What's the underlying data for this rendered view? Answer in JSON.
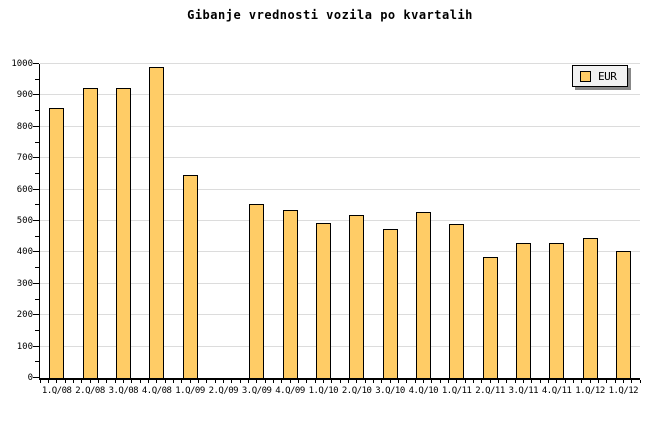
{
  "chart_data": {
    "type": "bar",
    "title": "Gibanje vrednosti vozila po kvartalih",
    "categories": [
      "1.Q/08",
      "2.Q/08",
      "3.Q/08",
      "4.Q/08",
      "1.Q/09",
      "2.Q/09",
      "3.Q/09",
      "4.Q/09",
      "1.Q/10",
      "2.Q/10",
      "3.Q/10",
      "4.Q/10",
      "1.Q/11",
      "2.Q/11",
      "3.Q/11",
      "4.Q/11",
      "1.Q/12",
      "1.Q/12"
    ],
    "series": [
      {
        "name": "EUR",
        "values": [
          860,
          925,
          925,
          990,
          645,
          0,
          555,
          535,
          495,
          520,
          475,
          530,
          490,
          385,
          430,
          430,
          445,
          405
        ]
      }
    ],
    "xlabel": "",
    "ylabel": "",
    "ylim": [
      0,
      1000
    ],
    "ytick_step": 100,
    "ytick_minor_step": 50,
    "grid": true,
    "legend_position": "top-right",
    "bar_color": "#FFCC66",
    "bar_border_color": "#000000",
    "grid_color": "#DCDCDC",
    "background_color": "#FFFFFF"
  }
}
